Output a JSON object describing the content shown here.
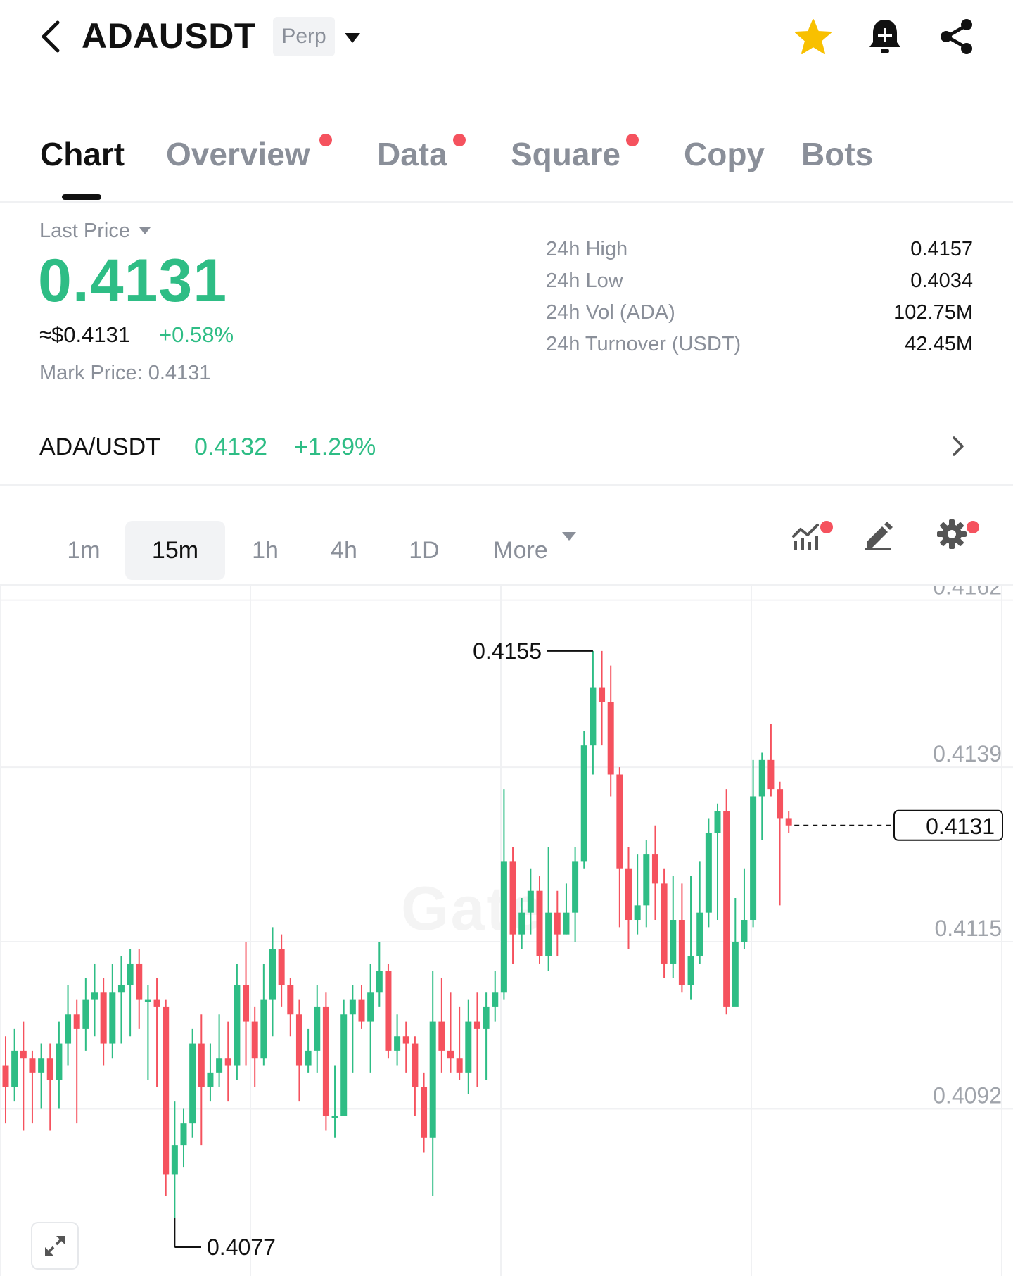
{
  "header": {
    "symbol": "ADAUSDT",
    "contract_type": "Perp",
    "icons": [
      "back-icon",
      "caret-down-icon",
      "star-icon",
      "bell-icon",
      "share-icon"
    ],
    "favorite_color": "#f8c000"
  },
  "tabs": [
    {
      "label": "Chart",
      "active": true,
      "dot": false
    },
    {
      "label": "Overview",
      "active": false,
      "dot": true
    },
    {
      "label": "Data",
      "active": false,
      "dot": true
    },
    {
      "label": "Square",
      "active": false,
      "dot": true
    },
    {
      "label": "Copy",
      "active": false,
      "dot": false
    },
    {
      "label": "Bots",
      "active": false,
      "dot": false
    }
  ],
  "price": {
    "label": "Last Price",
    "last": "0.4131",
    "usd": "≈$0.4131",
    "change": "+0.58%",
    "mark_label": "Mark Price:",
    "mark_value": "0.4131"
  },
  "stats": [
    {
      "label": "24h High",
      "value": "0.4157"
    },
    {
      "label": "24h Low",
      "value": "0.4034"
    },
    {
      "label": "24h Vol (ADA)",
      "value": "102.75M"
    },
    {
      "label": "24h Turnover (USDT)",
      "value": "42.45M"
    }
  ],
  "spot": {
    "symbol": "ADA/USDT",
    "price": "0.4132",
    "change": "+1.29%"
  },
  "intervals": {
    "options": [
      "1m",
      "15m",
      "1h",
      "4h",
      "1D"
    ],
    "selected": "15m",
    "more_label": "More"
  },
  "colors": {
    "up": "#2ebd85",
    "down": "#f5525e",
    "grid": "#f0f1f3"
  },
  "chart_data": {
    "type": "candlestick",
    "interval": "15m",
    "y_ticks": [
      "0.4162",
      "0.4139",
      "0.4115",
      "0.4092"
    ],
    "ylim": [
      0.4069,
      0.4164
    ],
    "current_price": "0.4131",
    "high_annotation": "0.4155",
    "low_annotation": "0.4077",
    "watermark": "Gate",
    "candles": [
      [
        0.4098,
        0.4095,
        0.4102,
        0.409
      ],
      [
        0.4095,
        0.41,
        0.4103,
        0.4093
      ],
      [
        0.41,
        0.4099,
        0.4104,
        0.4089
      ],
      [
        0.4099,
        0.4097,
        0.41,
        0.409
      ],
      [
        0.4097,
        0.4099,
        0.4101,
        0.4092
      ],
      [
        0.4099,
        0.4096,
        0.4101,
        0.4089
      ],
      [
        0.4096,
        0.4101,
        0.4104,
        0.4092
      ],
      [
        0.4101,
        0.4105,
        0.4109,
        0.4098
      ],
      [
        0.4105,
        0.4103,
        0.4107,
        0.409
      ],
      [
        0.4103,
        0.4107,
        0.411,
        0.41
      ],
      [
        0.4107,
        0.4108,
        0.4112,
        0.4102
      ],
      [
        0.4108,
        0.4101,
        0.411,
        0.4098
      ],
      [
        0.4101,
        0.4108,
        0.4112,
        0.4099
      ],
      [
        0.4108,
        0.4109,
        0.4113,
        0.4101
      ],
      [
        0.4109,
        0.4112,
        0.4114,
        0.4102
      ],
      [
        0.4112,
        0.4107,
        0.4114,
        0.4103
      ],
      [
        0.4107,
        0.4107,
        0.4109,
        0.4096
      ],
      [
        0.4107,
        0.4106,
        0.411,
        0.4095
      ],
      [
        0.4106,
        0.4083,
        0.4107,
        0.408
      ],
      [
        0.4083,
        0.4087,
        0.4093,
        0.4077
      ],
      [
        0.4087,
        0.409,
        0.4092,
        0.4084
      ],
      [
        0.409,
        0.4101,
        0.4103,
        0.4088
      ],
      [
        0.4101,
        0.4095,
        0.4105,
        0.4087
      ],
      [
        0.4095,
        0.4097,
        0.4101,
        0.4093
      ],
      [
        0.4097,
        0.4099,
        0.4105,
        0.4095
      ],
      [
        0.4099,
        0.4098,
        0.4104,
        0.4093
      ],
      [
        0.4098,
        0.4109,
        0.4112,
        0.4096
      ],
      [
        0.4109,
        0.4104,
        0.4115,
        0.4098
      ],
      [
        0.4104,
        0.4099,
        0.4106,
        0.4095
      ],
      [
        0.4099,
        0.4107,
        0.4112,
        0.4098
      ],
      [
        0.4107,
        0.4114,
        0.4117,
        0.4102
      ],
      [
        0.4114,
        0.4109,
        0.4116,
        0.4106
      ],
      [
        0.4109,
        0.4105,
        0.411,
        0.4102
      ],
      [
        0.4105,
        0.4098,
        0.4107,
        0.4093
      ],
      [
        0.4098,
        0.41,
        0.4103,
        0.4097
      ],
      [
        0.41,
        0.4106,
        0.4109,
        0.4097
      ],
      [
        0.4106,
        0.4091,
        0.4108,
        0.4089
      ],
      [
        0.4091,
        0.4091,
        0.4098,
        0.4088
      ],
      [
        0.4091,
        0.4105,
        0.4107,
        0.4091
      ],
      [
        0.4105,
        0.4107,
        0.4109,
        0.4097
      ],
      [
        0.4107,
        0.4104,
        0.4109,
        0.4103
      ],
      [
        0.4104,
        0.4108,
        0.4112,
        0.4097
      ],
      [
        0.4108,
        0.4111,
        0.4115,
        0.4106
      ],
      [
        0.4111,
        0.41,
        0.4112,
        0.4099
      ],
      [
        0.41,
        0.4102,
        0.4105,
        0.4098
      ],
      [
        0.4102,
        0.4101,
        0.4104,
        0.4097
      ],
      [
        0.4101,
        0.4095,
        0.4102,
        0.4091
      ],
      [
        0.4095,
        0.4088,
        0.4097,
        0.4086
      ],
      [
        0.4088,
        0.4104,
        0.4111,
        0.408
      ],
      [
        0.4104,
        0.41,
        0.411,
        0.4097
      ],
      [
        0.41,
        0.4099,
        0.4108,
        0.4097
      ],
      [
        0.4099,
        0.4097,
        0.4106,
        0.4096
      ],
      [
        0.4097,
        0.4104,
        0.4107,
        0.4094
      ],
      [
        0.4104,
        0.4103,
        0.4108,
        0.4095
      ],
      [
        0.4103,
        0.4106,
        0.4108,
        0.4096
      ],
      [
        0.4106,
        0.4108,
        0.4111,
        0.4104
      ],
      [
        0.4108,
        0.4126,
        0.4136,
        0.4107
      ],
      [
        0.4126,
        0.4116,
        0.4128,
        0.4112
      ],
      [
        0.4116,
        0.4119,
        0.4121,
        0.4114
      ],
      [
        0.4119,
        0.4122,
        0.4125,
        0.4116
      ],
      [
        0.4122,
        0.4113,
        0.4124,
        0.4112
      ],
      [
        0.4113,
        0.4119,
        0.4128,
        0.4111
      ],
      [
        0.4119,
        0.4116,
        0.4122,
        0.4113
      ],
      [
        0.4116,
        0.4119,
        0.4123,
        0.4116
      ],
      [
        0.4119,
        0.4126,
        0.4128,
        0.4115
      ],
      [
        0.4126,
        0.4142,
        0.4144,
        0.4125
      ],
      [
        0.4142,
        0.415,
        0.4155,
        0.4138
      ],
      [
        0.415,
        0.4148,
        0.4155,
        0.4142
      ],
      [
        0.4148,
        0.4138,
        0.4153,
        0.4135
      ],
      [
        0.4138,
        0.4125,
        0.4139,
        0.4117
      ],
      [
        0.4125,
        0.4118,
        0.4128,
        0.4114
      ],
      [
        0.4118,
        0.412,
        0.4127,
        0.4116
      ],
      [
        0.412,
        0.4127,
        0.4129,
        0.4117
      ],
      [
        0.4127,
        0.4123,
        0.4131,
        0.4118
      ],
      [
        0.4123,
        0.4112,
        0.4125,
        0.411
      ],
      [
        0.4112,
        0.4118,
        0.4124,
        0.411
      ],
      [
        0.4118,
        0.4109,
        0.4123,
        0.4108
      ],
      [
        0.4109,
        0.4113,
        0.4124,
        0.4107
      ],
      [
        0.4113,
        0.4119,
        0.4126,
        0.4112
      ],
      [
        0.4119,
        0.413,
        0.4132,
        0.4117
      ],
      [
        0.413,
        0.4133,
        0.4134,
        0.4118
      ],
      [
        0.4133,
        0.4106,
        0.4136,
        0.4105
      ],
      [
        0.4106,
        0.4115,
        0.4121,
        0.4107
      ],
      [
        0.4115,
        0.4118,
        0.4125,
        0.4114
      ],
      [
        0.4118,
        0.4135,
        0.414,
        0.4117
      ],
      [
        0.4135,
        0.414,
        0.4141,
        0.4129
      ],
      [
        0.414,
        0.4136,
        0.4145,
        0.4135
      ],
      [
        0.4136,
        0.4132,
        0.4137,
        0.412
      ],
      [
        0.4132,
        0.4131,
        0.4133,
        0.413
      ]
    ]
  }
}
